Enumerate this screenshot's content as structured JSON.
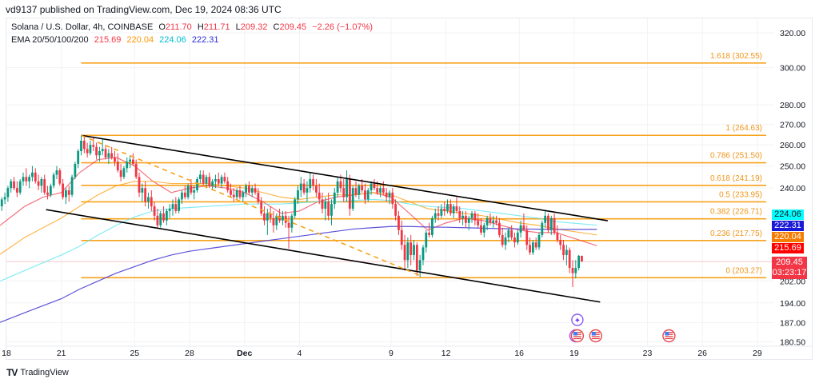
{
  "header": {
    "published": "vd9137 published on TradingView.com, Dec 19, 2024 08:36 UTC"
  },
  "legend": {
    "symbol": "Solana / U.S. Dollar, 4h, COINBASE",
    "o_label": "O",
    "o": "211.70",
    "h_label": "H",
    "h": "211.71",
    "l_label": "L",
    "l": "209.32",
    "c_label": "C",
    "c": "209.45",
    "change": "−2.26 (−1.07%)",
    "ema_label": "EMA 20/50/100/200",
    "ema20": "215.69",
    "ema50": "220.04",
    "ema100": "224.06",
    "ema200": "222.31"
  },
  "price_tags": {
    "ema100": "224.06",
    "ema200": "222.31",
    "ema50": "220.04",
    "ema20": "215.69",
    "last": "209.45",
    "countdown": "03:23:17"
  },
  "footer": {
    "logo_text": "TradingView"
  },
  "colors": {
    "up": "#089981",
    "down": "#f23645",
    "fib": "#f7a21b",
    "ema20": "#f23645",
    "ema50": "#ff9800",
    "ema100": "#4ee6f0",
    "ema200": "#4a3fd6",
    "channel": "#000000",
    "last_price": "#f23645"
  },
  "events": [
    {
      "date": "2024-12-19",
      "icon": "sparkle-icon"
    },
    {
      "date": "2024-12-19",
      "icon": "us-flag-icon"
    },
    {
      "date": "2024-12-20",
      "icon": "us-flag-icon"
    },
    {
      "date": "2024-12-24",
      "icon": "us-flag-icon"
    }
  ],
  "chart_data": {
    "type": "candlestick",
    "interval": "4h",
    "scale": "log",
    "ylim": [
      180.5,
      320
    ],
    "y_ticks": [
      "320.00",
      "300.00",
      "280.00",
      "270.00",
      "260.00",
      "250.00",
      "240.00",
      "202.00",
      "194.00",
      "187.00",
      "180.50"
    ],
    "x_ticks": [
      {
        "label": "18",
        "date": "2024-11-18"
      },
      {
        "label": "21",
        "date": "2024-11-21"
      },
      {
        "label": "25",
        "date": "2024-11-25"
      },
      {
        "label": "28",
        "date": "2024-11-28"
      },
      {
        "label": "Dec",
        "date": "2024-12-01"
      },
      {
        "label": "4",
        "date": "2024-12-04"
      },
      {
        "label": "9",
        "date": "2024-12-09"
      },
      {
        "label": "12",
        "date": "2024-12-12"
      },
      {
        "label": "16",
        "date": "2024-12-16"
      },
      {
        "label": "19",
        "date": "2024-12-19"
      },
      {
        "label": "23",
        "date": "2024-12-23"
      },
      {
        "label": "26",
        "date": "2024-12-26"
      },
      {
        "label": "29",
        "date": "2024-12-29"
      }
    ],
    "first_candle": "2024-11-17 16:00",
    "ohlc": [
      [
        232,
        236,
        230,
        235
      ],
      [
        235,
        238,
        233,
        236
      ],
      [
        236,
        241,
        234,
        240
      ],
      [
        240,
        244,
        238,
        243
      ],
      [
        243,
        245,
        239,
        240
      ],
      [
        240,
        243,
        236,
        238
      ],
      [
        238,
        244,
        237,
        243
      ],
      [
        243,
        247,
        241,
        245
      ],
      [
        245,
        249,
        241,
        243
      ],
      [
        243,
        246,
        240,
        245
      ],
      [
        245,
        250,
        243,
        247
      ],
      [
        247,
        249,
        242,
        243
      ],
      [
        243,
        246,
        239,
        241
      ],
      [
        241,
        245,
        238,
        244
      ],
      [
        244,
        246,
        237,
        238
      ],
      [
        238,
        241,
        235,
        237
      ],
      [
        237,
        242,
        236,
        241
      ],
      [
        241,
        247,
        240,
        246
      ],
      [
        246,
        250,
        244,
        248
      ],
      [
        248,
        249,
        241,
        242
      ],
      [
        242,
        244,
        235,
        236
      ],
      [
        236,
        240,
        233,
        239
      ],
      [
        239,
        241,
        234,
        237
      ],
      [
        237,
        246,
        236,
        245
      ],
      [
        245,
        252,
        244,
        251
      ],
      [
        251,
        258,
        249,
        257
      ],
      [
        257,
        264.6,
        255,
        262
      ],
      [
        262,
        264,
        256,
        258
      ],
      [
        258,
        261,
        254,
        256
      ],
      [
        256,
        262,
        255,
        260
      ],
      [
        260,
        264,
        257,
        259
      ],
      [
        259,
        261,
        253,
        255
      ],
      [
        255,
        259,
        252,
        257
      ],
      [
        257,
        263,
        255,
        258
      ],
      [
        258,
        260,
        253,
        254
      ],
      [
        254,
        258,
        251,
        256
      ],
      [
        256,
        259,
        253,
        254
      ],
      [
        254,
        257,
        250,
        252
      ],
      [
        252,
        256,
        247,
        248
      ],
      [
        248,
        251,
        243,
        245
      ],
      [
        245,
        250,
        244,
        249
      ],
      [
        249,
        254,
        247,
        252
      ],
      [
        252,
        255,
        249,
        253
      ],
      [
        253,
        256,
        250,
        251
      ],
      [
        251,
        253,
        244,
        245
      ],
      [
        245,
        247,
        236,
        238
      ],
      [
        238,
        242,
        234,
        240
      ],
      [
        240,
        243,
        232,
        234
      ],
      [
        234,
        238,
        231,
        236
      ],
      [
        236,
        239,
        230,
        232
      ],
      [
        232,
        234,
        226,
        228
      ],
      [
        228,
        231,
        222.7,
        224
      ],
      [
        224,
        230,
        223,
        229
      ],
      [
        229,
        232,
        225,
        226
      ],
      [
        226,
        231,
        224,
        230
      ],
      [
        230,
        233,
        227,
        231
      ],
      [
        231,
        235,
        228,
        233
      ],
      [
        233,
        236,
        229,
        230
      ],
      [
        230,
        236,
        229,
        235
      ],
      [
        235,
        239,
        233,
        238
      ],
      [
        238,
        241,
        235,
        236
      ],
      [
        236,
        242,
        235,
        241
      ],
      [
        241,
        244,
        237,
        238
      ],
      [
        238,
        241,
        235,
        239
      ],
      [
        239,
        245,
        238,
        244
      ],
      [
        244,
        248,
        242,
        246
      ],
      [
        246,
        248,
        241,
        242
      ],
      [
        242,
        246,
        240,
        245
      ],
      [
        245,
        247,
        240,
        241
      ],
      [
        241,
        244,
        239,
        243
      ],
      [
        243,
        246,
        240,
        244
      ],
      [
        244,
        247,
        241,
        242
      ],
      [
        242,
        246,
        240,
        245
      ],
      [
        245,
        247,
        242,
        243
      ],
      [
        243,
        245,
        238,
        239
      ],
      [
        239,
        242,
        236,
        237
      ],
      [
        237,
        240,
        234,
        236
      ],
      [
        236,
        240,
        235,
        239
      ],
      [
        239,
        241,
        235,
        236
      ],
      [
        236,
        239,
        234,
        238
      ],
      [
        238,
        242,
        236,
        241
      ],
      [
        241,
        243,
        237,
        238
      ],
      [
        238,
        241,
        236,
        240
      ],
      [
        240,
        242,
        237,
        238
      ],
      [
        238,
        240,
        233,
        234
      ],
      [
        234,
        236,
        228,
        229
      ],
      [
        229,
        232,
        224,
        226
      ],
      [
        226,
        231,
        220,
        229
      ],
      [
        229,
        232,
        225,
        227
      ],
      [
        227,
        230,
        221,
        224
      ],
      [
        224,
        229,
        222,
        228
      ],
      [
        228,
        231,
        225,
        226
      ],
      [
        226,
        230,
        224,
        228
      ],
      [
        228,
        230,
        223,
        225
      ],
      [
        225,
        228,
        214.5,
        223
      ],
      [
        223,
        229,
        221,
        228
      ],
      [
        228,
        236,
        227,
        235
      ],
      [
        235,
        241,
        233,
        239
      ],
      [
        239,
        245,
        236,
        242
      ],
      [
        242,
        244,
        237,
        238
      ],
      [
        238,
        243,
        234,
        240
      ],
      [
        240,
        247,
        238,
        244
      ],
      [
        244,
        246,
        239,
        241
      ],
      [
        241,
        244,
        236,
        238
      ],
      [
        238,
        242,
        233,
        235
      ],
      [
        235,
        238,
        229,
        231
      ],
      [
        231,
        236,
        226,
        234
      ],
      [
        234,
        238,
        226,
        228
      ],
      [
        228,
        235,
        224,
        233
      ],
      [
        233,
        240,
        231,
        238
      ],
      [
        238,
        245,
        236,
        243
      ],
      [
        243,
        246,
        238,
        240
      ],
      [
        240,
        244,
        234,
        236
      ],
      [
        236,
        248,
        234,
        244
      ],
      [
        244,
        246,
        228,
        231
      ],
      [
        231,
        241,
        230,
        240
      ],
      [
        240,
        243,
        236,
        237
      ],
      [
        237,
        242,
        235,
        241
      ],
      [
        241,
        244,
        238,
        239
      ],
      [
        239,
        242,
        233,
        235
      ],
      [
        235,
        240,
        234,
        239
      ],
      [
        239,
        243,
        237,
        242
      ],
      [
        242,
        244,
        239,
        240
      ],
      [
        240,
        243,
        237,
        238
      ],
      [
        238,
        241,
        236,
        240
      ],
      [
        240,
        243,
        237,
        238
      ],
      [
        238,
        240,
        234,
        236
      ],
      [
        236,
        239,
        233,
        238
      ],
      [
        238,
        240,
        231,
        233
      ],
      [
        233,
        235,
        226,
        228
      ],
      [
        228,
        230,
        220,
        222
      ],
      [
        222,
        226,
        214,
        216
      ],
      [
        216,
        220,
        206,
        210
      ],
      [
        210,
        219,
        207,
        217
      ],
      [
        217,
        220,
        208,
        212
      ],
      [
        212,
        218,
        210,
        216
      ],
      [
        216,
        217,
        204,
        206
      ],
      [
        206,
        212,
        203.5,
        210
      ],
      [
        210,
        216,
        208,
        215
      ],
      [
        215,
        222,
        213,
        221
      ],
      [
        221,
        225,
        219,
        220
      ],
      [
        220,
        228,
        219,
        227
      ],
      [
        227,
        231,
        225,
        229
      ],
      [
        229,
        232,
        226,
        228
      ],
      [
        228,
        233,
        227,
        231
      ],
      [
        231,
        234,
        228,
        230
      ],
      [
        230,
        235,
        229,
        233
      ],
      [
        233,
        235,
        228,
        229
      ],
      [
        229,
        233,
        227,
        232
      ],
      [
        232,
        236,
        229,
        230
      ],
      [
        230,
        232,
        225,
        227
      ],
      [
        227,
        230,
        224,
        228
      ],
      [
        228,
        230,
        223,
        225
      ],
      [
        225,
        228,
        222,
        227
      ],
      [
        227,
        230,
        225,
        229
      ],
      [
        229,
        230,
        224,
        226
      ],
      [
        226,
        229,
        223,
        224
      ],
      [
        224,
        227,
        220,
        221
      ],
      [
        221,
        225,
        219,
        224
      ],
      [
        224,
        228,
        222,
        227
      ],
      [
        227,
        229,
        224,
        225
      ],
      [
        225,
        228,
        223,
        226
      ],
      [
        226,
        228,
        224,
        225
      ],
      [
        225,
        227,
        219,
        220
      ],
      [
        220,
        223,
        215,
        216
      ],
      [
        216,
        221,
        214,
        219
      ],
      [
        219,
        223,
        217,
        222
      ],
      [
        222,
        224,
        218,
        219
      ],
      [
        219,
        221,
        215,
        217
      ],
      [
        217,
        222,
        216,
        221
      ],
      [
        221,
        226,
        219,
        224
      ],
      [
        224,
        229,
        222,
        222
      ],
      [
        222,
        224,
        214,
        216
      ],
      [
        216,
        219,
        212,
        213
      ],
      [
        213,
        218,
        212,
        217
      ],
      [
        217,
        219,
        214,
        215
      ],
      [
        215,
        221,
        214,
        220
      ],
      [
        220,
        226,
        219,
        225
      ],
      [
        225,
        230,
        223,
        228
      ],
      [
        228,
        229,
        221,
        222
      ],
      [
        222,
        228,
        220,
        227
      ],
      [
        227,
        229,
        220,
        221
      ],
      [
        221,
        224,
        217,
        218
      ],
      [
        218,
        220,
        214,
        216
      ],
      [
        216,
        218,
        210,
        212
      ],
      [
        212,
        216,
        208,
        214
      ],
      [
        214,
        215,
        205,
        207
      ],
      [
        207,
        210,
        199.8,
        205
      ],
      [
        205,
        210,
        203,
        207
      ],
      [
        207,
        212,
        206,
        211.7
      ],
      [
        211.7,
        211.71,
        209.32,
        209.45
      ]
    ],
    "ema_daily_start": "2024-11-18",
    "ema": [
      {
        "name": "EMA 20",
        "color_key": "ema20",
        "values": [
          226,
          232,
          236,
          238,
          247,
          253,
          254,
          250,
          243,
          238,
          240,
          241,
          240,
          238,
          234,
          229,
          230,
          234,
          236,
          237,
          238,
          236,
          229,
          222,
          225,
          227,
          226,
          224,
          222,
          221,
          221,
          215.69
        ]
      },
      {
        "name": "EMA 50",
        "color_key": "ema50",
        "values": [
          214,
          219,
          223,
          227,
          232,
          237,
          241,
          243,
          243,
          242,
          242,
          242,
          241,
          240,
          238,
          236,
          235,
          236,
          237,
          237,
          238,
          237,
          234,
          231,
          230,
          229,
          228,
          226.5,
          225,
          224,
          222.5,
          220.04
        ]
      },
      {
        "name": "EMA 100",
        "color_key": "ema100",
        "values": [
          203,
          206,
          209,
          212,
          215.5,
          220,
          224,
          227.5,
          230,
          231,
          231.5,
          232,
          232.5,
          233,
          233,
          233,
          233.5,
          234,
          234,
          234.5,
          235,
          234.5,
          233,
          232,
          231.5,
          231,
          230,
          229,
          228,
          227,
          225.5,
          224.06
        ]
      },
      {
        "name": "EMA 200",
        "color_key": "ema200",
        "values": [
          188,
          190.5,
          193,
          195.5,
          199,
          202,
          205,
          207.5,
          210,
          212,
          213.5,
          214.5,
          215.5,
          216.5,
          217.5,
          218.5,
          219.5,
          220.5,
          221.5,
          222.5,
          223,
          223.5,
          223.5,
          223.3,
          223.2,
          223,
          222.8,
          222.6,
          222.5,
          222.4,
          222.3,
          222.31
        ]
      }
    ],
    "fib": {
      "start": "2024-11-22 02:00",
      "levels": [
        {
          "label": "1.618 (302.55)",
          "price": 302.55
        },
        {
          "label": "1 (264.63)",
          "price": 264.63
        },
        {
          "label": "0.786 (251.50)",
          "price": 251.5
        },
        {
          "label": "0.618 (241.19)",
          "price": 241.19
        },
        {
          "label": "0.5 (233.95)",
          "price": 233.95
        },
        {
          "label": "0.382 (226.71)",
          "price": 226.71
        },
        {
          "label": "0.236 (217.75)",
          "price": 217.75
        },
        {
          "label": "0 (203.27)",
          "price": 203.27
        }
      ]
    },
    "trendlines": [
      {
        "name": "channel-upper",
        "style": "solid",
        "from": {
          "date": "2024-11-22 02:00",
          "price": 264.6
        },
        "to": {
          "date": "2024-12-20 20:00",
          "price": 225.9
        }
      },
      {
        "name": "channel-lower",
        "style": "solid",
        "from": {
          "date": "2024-11-20 04:00",
          "price": 230.6
        },
        "to": {
          "date": "2024-12-20 10:00",
          "price": 194.3
        }
      },
      {
        "name": "fib-trend",
        "style": "dashed",
        "from": {
          "date": "2024-11-22 02:00",
          "price": 264.6
        },
        "to": {
          "date": "2024-12-10 14:00",
          "price": 204.1
        }
      }
    ],
    "last_price": 209.45
  }
}
